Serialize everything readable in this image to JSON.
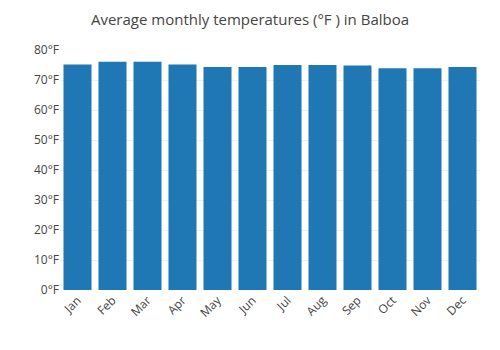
{
  "chart_data": {
    "type": "bar",
    "title": "Average monthly temperatures (°F ) in Balboa",
    "categories": [
      "Jan",
      "Feb",
      "Mar",
      "Apr",
      "May",
      "Jun",
      "Jul",
      "Aug",
      "Sep",
      "Oct",
      "Nov",
      "Dec"
    ],
    "values": [
      75.2,
      76.1,
      76.1,
      75.2,
      74.3,
      74.3,
      75.0,
      75.0,
      74.8,
      73.9,
      73.9,
      74.3
    ],
    "ylim": [
      0,
      80
    ],
    "yticks": [
      {
        "value": 0,
        "label": "0°F"
      },
      {
        "value": 10,
        "label": "10°F"
      },
      {
        "value": 20,
        "label": "20°F"
      },
      {
        "value": 30,
        "label": "30°F"
      },
      {
        "value": 40,
        "label": "40°F"
      },
      {
        "value": 50,
        "label": "50°F"
      },
      {
        "value": 60,
        "label": "60°F"
      },
      {
        "value": 70,
        "label": "70°F"
      },
      {
        "value": 80,
        "label": "80°F"
      }
    ],
    "grid": true
  }
}
